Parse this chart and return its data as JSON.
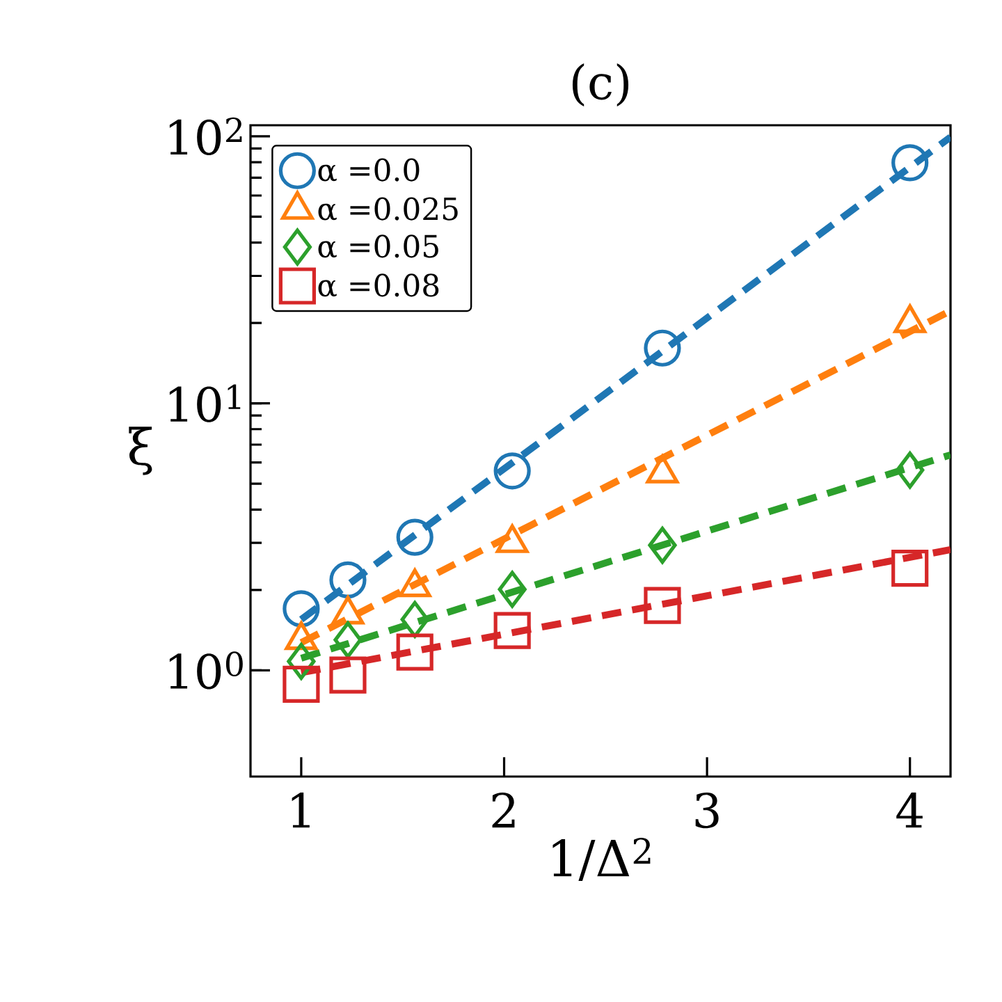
{
  "chart_data": {
    "type": "scatter",
    "title": "(c)",
    "xlabel": "1/Δ$^{2}$",
    "ylabel": "ξ",
    "log": "y",
    "xlim": [
      0.75,
      4.2
    ],
    "ylim": [
      0.4,
      110
    ],
    "xticks": [
      1,
      2,
      3,
      4
    ],
    "yticks": [
      {
        "value": 1,
        "label": "10$^{0}$"
      },
      {
        "value": 10,
        "label": "10$^{1}$"
      },
      {
        "value": 100,
        "label": "10$^{2}$"
      }
    ],
    "legend": "top left",
    "series": [
      {
        "name": "α =0.0",
        "color": "#1f77b4",
        "marker": "circle",
        "x": [
          1.0,
          1.23,
          1.56,
          2.04,
          2.78,
          4.0
        ],
        "values": [
          1.7,
          2.18,
          3.15,
          5.58,
          16.1,
          79.6
        ]
      },
      {
        "name": "α =0.025",
        "color": "#ff7f0e",
        "marker": "triangle",
        "x": [
          1.0,
          1.23,
          1.56,
          2.04,
          2.78,
          4.0
        ],
        "values": [
          1.3,
          1.62,
          2.05,
          3.0,
          5.47,
          20.0
        ]
      },
      {
        "name": "α =0.05",
        "color": "#2ca02c",
        "marker": "diamond",
        "x": [
          1.0,
          1.23,
          1.56,
          2.04,
          2.78,
          4.0
        ],
        "values": [
          1.08,
          1.3,
          1.55,
          2.01,
          2.94,
          5.62
        ]
      },
      {
        "name": "α =0.08",
        "color": "#d62728",
        "marker": "square",
        "x": [
          1.0,
          1.23,
          1.56,
          2.04,
          2.78,
          4.0
        ],
        "values": [
          0.887,
          0.96,
          1.17,
          1.41,
          1.75,
          2.41
        ]
      },
      {
        "type": "line",
        "color": "#1f77b4",
        "line_style": "dashed",
        "marker": "none",
        "x": [
          1.0,
          4.2
        ],
        "values": [
          1.55,
          99.3
        ]
      },
      {
        "type": "line",
        "color": "#ff7f0e",
        "line_style": "dashed",
        "marker": "none",
        "x": [
          1.0,
          4.2
        ],
        "values": [
          1.27,
          22.2
        ]
      },
      {
        "type": "line",
        "color": "#2ca02c",
        "line_style": "dashed",
        "marker": "none",
        "x": [
          1.0,
          4.2
        ],
        "values": [
          1.11,
          6.41
        ]
      },
      {
        "type": "line",
        "color": "#d62728",
        "line_style": "dashed",
        "marker": "none",
        "x": [
          1.0,
          4.2
        ],
        "values": [
          0.98,
          2.83
        ]
      }
    ]
  }
}
